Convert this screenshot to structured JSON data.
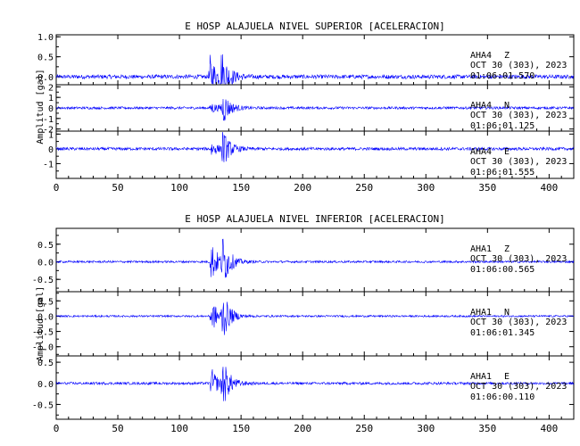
{
  "chart_data": [
    {
      "type": "line",
      "title": "E HOSP ALAJUELA NIVEL SUPERIOR [ACELERACION]",
      "ylabel": "Amplitud [gal]",
      "xlabel": "",
      "xlim": [
        0,
        420
      ],
      "x_ticks": [
        "0",
        "50",
        "100",
        "150",
        "200",
        "250",
        "300",
        "350",
        "400"
      ],
      "series_color": "#0000ff",
      "grid": false,
      "panels": [
        {
          "station": "AHA4",
          "component": "Z",
          "date": "OCT 30 (303), 2023",
          "time": "01:06:01.570",
          "ylim": [
            -0.2,
            1.05
          ],
          "yticks": [
            "1.0",
            "0.5",
            "0.0"
          ],
          "trace": {
            "noise_amp": 0.05,
            "bursts": [
              {
                "t": 125,
                "amp": 0.55
              },
              {
                "t": 134,
                "amp": 0.65
              }
            ]
          }
        },
        {
          "station": "AHA4",
          "component": "N",
          "date": "OCT 30 (303), 2023",
          "time": "01:06:01.125",
          "ylim": [
            -2.2,
            2.2
          ],
          "yticks": [
            "2",
            "1",
            "0",
            "-1",
            "-2"
          ],
          "trace": {
            "noise_amp": 0.12,
            "bursts": [
              {
                "t": 126,
                "amp": 0.5
              },
              {
                "t": 135,
                "amp": 1.6
              }
            ]
          }
        },
        {
          "station": "AHA4",
          "component": "E",
          "date": "OCT 30 (303), 2023",
          "time": "01:06:01.555",
          "ylim": [
            -2.0,
            1.2
          ],
          "yticks": [
            "1",
            "0",
            "-1"
          ],
          "trace": {
            "noise_amp": 0.1,
            "bursts": [
              {
                "t": 126,
                "amp": 0.5
              },
              {
                "t": 135,
                "amp": 1.2
              }
            ]
          }
        }
      ]
    },
    {
      "type": "line",
      "title": "E HOSP ALAJUELA NIVEL INFERIOR [ACELERACION]",
      "ylabel": "Amplitud [gal]",
      "xlabel": "",
      "xlim": [
        0,
        420
      ],
      "x_ticks": [
        "0",
        "50",
        "100",
        "150",
        "200",
        "250",
        "300",
        "350",
        "400"
      ],
      "series_color": "#0000ff",
      "grid": false,
      "panels": [
        {
          "station": "AHA1",
          "component": "Z",
          "date": "OCT 30 (303), 2023",
          "time": "01:06:00.565",
          "ylim": [
            -0.85,
            0.95
          ],
          "yticks": [
            "0.5",
            "0.0",
            "-0.5"
          ],
          "trace": {
            "noise_amp": 0.03,
            "bursts": [
              {
                "t": 126,
                "amp": 0.6
              },
              {
                "t": 135,
                "amp": 0.7
              }
            ]
          }
        },
        {
          "station": "AHA1",
          "component": "N",
          "date": "OCT 30 (303), 2023",
          "time": "01:06:01.345",
          "ylim": [
            -1.3,
            0.8
          ],
          "yticks": [
            "0.5",
            "0.0",
            "-0.5",
            "-1.0"
          ],
          "trace": {
            "noise_amp": 0.03,
            "bursts": [
              {
                "t": 126,
                "amp": 0.55
              },
              {
                "t": 135,
                "amp": 0.75
              }
            ]
          }
        },
        {
          "station": "AHA1",
          "component": "E",
          "date": "OCT 30 (303), 2023",
          "time": "01:06:00.110",
          "ylim": [
            -0.85,
            0.65
          ],
          "yticks": [
            "0.5",
            "0.0",
            "-0.5"
          ],
          "trace": {
            "noise_amp": 0.03,
            "bursts": [
              {
                "t": 126,
                "amp": 0.35
              },
              {
                "t": 135,
                "amp": 0.55
              }
            ]
          }
        }
      ]
    }
  ]
}
